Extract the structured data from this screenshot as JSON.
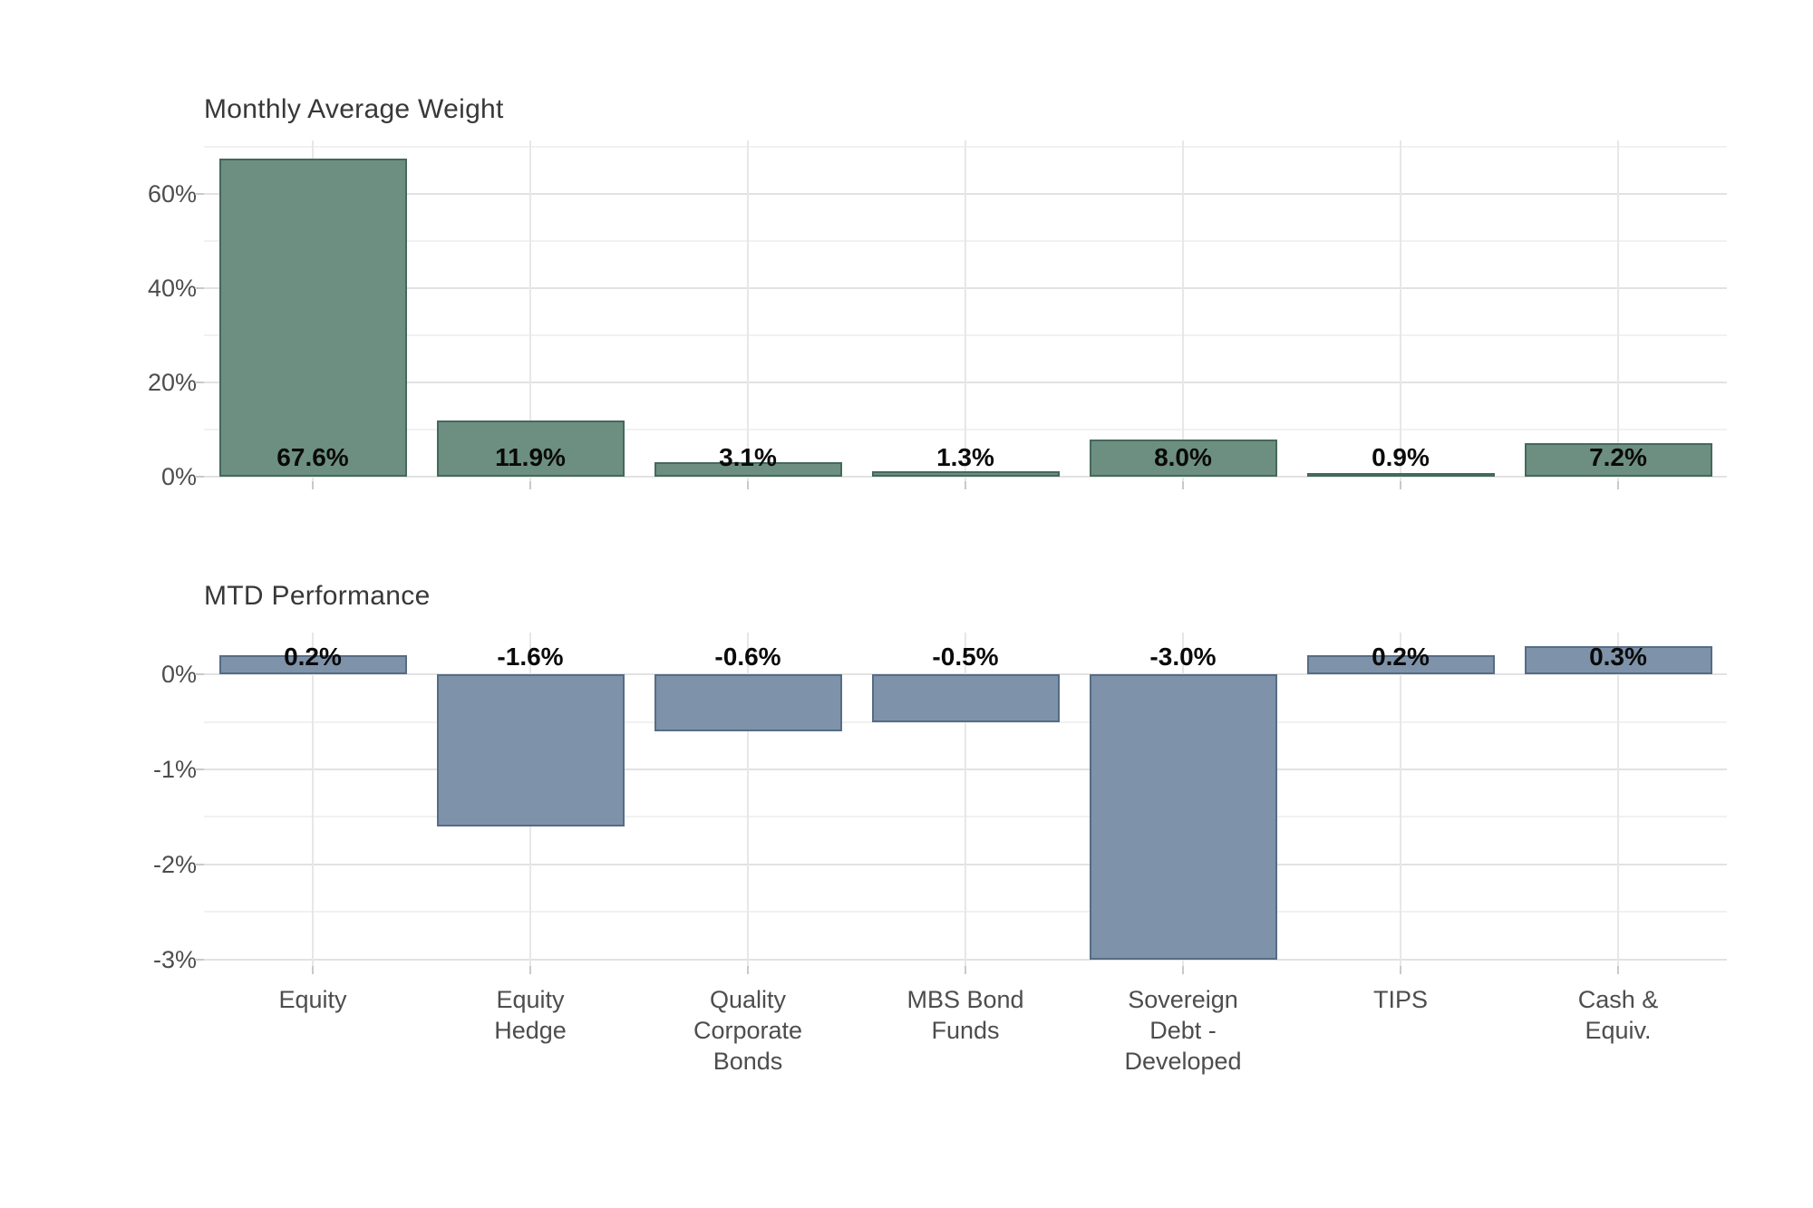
{
  "figure_title": "",
  "categories": [
    "Equity",
    "Equity Hedge",
    "Quality Corporate Bonds",
    "MBS Bond Funds",
    "Sovereign Debt - Developed",
    "TIPS",
    "Cash & Equiv."
  ],
  "category_label_lines": [
    [
      "Equity"
    ],
    [
      "Equity",
      "Hedge"
    ],
    [
      "Quality",
      "Corporate",
      "Bonds"
    ],
    [
      "MBS Bond",
      "Funds"
    ],
    [
      "Sovereign",
      "Debt -",
      "Developed"
    ],
    [
      "TIPS"
    ],
    [
      "Cash &",
      "Equiv."
    ]
  ],
  "chart_data": [
    {
      "type": "bar",
      "title": "Monthly Average Weight",
      "categories": [
        "Equity",
        "Equity Hedge",
        "Quality Corporate Bonds",
        "MBS Bond Funds",
        "Sovereign Debt - Developed",
        "TIPS",
        "Cash & Equiv."
      ],
      "values": [
        67.6,
        11.9,
        3.1,
        1.3,
        8.0,
        0.9,
        7.2
      ],
      "value_labels": [
        "67.6%",
        "11.9%",
        "3.1%",
        "1.3%",
        "8.0%",
        "0.9%",
        "7.2%"
      ],
      "bar_color": "#6d8f81",
      "bar_border_color": "#45685d",
      "ylabel": "",
      "xlabel": "",
      "ylim": [
        -0.8,
        71.4
      ],
      "yticks": [
        {
          "value": 0,
          "label": "0%"
        },
        {
          "value": 20,
          "label": "20%"
        },
        {
          "value": 40,
          "label": "40%"
        },
        {
          "value": 60,
          "label": "60%"
        }
      ],
      "yminor": [
        10,
        30,
        50,
        70
      ],
      "grid": "on",
      "legend": "none"
    },
    {
      "type": "bar",
      "title": "MTD Performance",
      "categories": [
        "Equity",
        "Equity Hedge",
        "Quality Corporate Bonds",
        "MBS Bond Funds",
        "Sovereign Debt - Developed",
        "TIPS",
        "Cash & Equiv."
      ],
      "values": [
        0.2,
        -1.6,
        -0.6,
        -0.5,
        -3.0,
        0.2,
        0.3
      ],
      "value_labels": [
        "0.2%",
        "-1.6%",
        "-0.6%",
        "-0.5%",
        "-3.0%",
        "0.2%",
        "0.3%"
      ],
      "bar_color": "#7e93aa",
      "bar_border_color": "#566c86",
      "ylabel": "",
      "xlabel": "",
      "ylim": [
        -3.07,
        0.44
      ],
      "yticks": [
        {
          "value": 0,
          "label": "0%"
        },
        {
          "value": -1,
          "label": "-1%"
        },
        {
          "value": -2,
          "label": "-2%"
        },
        {
          "value": -3,
          "label": "-3%"
        }
      ],
      "yminor": [
        -0.5,
        -1.5,
        -2.5
      ],
      "grid": "on",
      "legend": "none"
    }
  ],
  "colors": {
    "background": "#ffffff",
    "grid_major": "#e2e2e2",
    "grid_minor": "#f1f1f1",
    "vertical_grid": "#e7e7e7",
    "axis_tick": "#c9c9c9",
    "axis_text": "#4d4d4d",
    "title_text": "#383838",
    "value_label_text": "#0a0a0a",
    "weight_bar_fill": "#6d8f81",
    "weight_bar_border": "#45685d",
    "performance_bar_fill": "#7e93aa",
    "performance_bar_border": "#566c86"
  }
}
